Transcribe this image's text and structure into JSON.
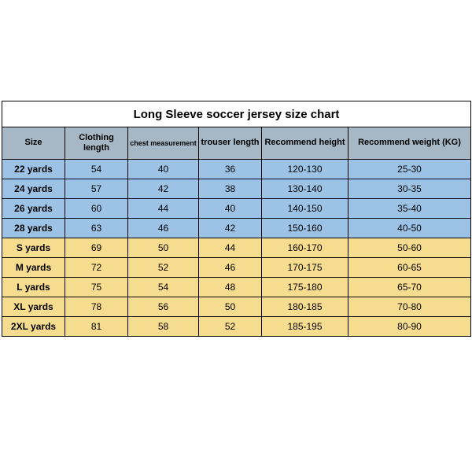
{
  "title": "Long Sleeve soccer jersey size chart",
  "columns": [
    {
      "key": "size",
      "label": "Size",
      "width": 80
    },
    {
      "key": "clothing",
      "label": "Clothing length",
      "width": 80
    },
    {
      "key": "chest",
      "label": "chest measurement",
      "width": 90
    },
    {
      "key": "trouser",
      "label": "trouser length",
      "width": 80
    },
    {
      "key": "height",
      "label": "Recommend height",
      "width": 110
    },
    {
      "key": "weight",
      "label": "Recommend weight (KG)",
      "width": 156
    }
  ],
  "header_bg": "#a6b8c6",
  "group_colors": {
    "youth": "#9cc3e6",
    "adult": "#f6dc8e"
  },
  "border_color": "#000000",
  "rows": [
    {
      "group": "youth",
      "size": "22 yards",
      "clothing": "54",
      "chest": "40",
      "trouser": "36",
      "height": "120-130",
      "weight": "25-30"
    },
    {
      "group": "youth",
      "size": "24 yards",
      "clothing": "57",
      "chest": "42",
      "trouser": "38",
      "height": "130-140",
      "weight": "30-35"
    },
    {
      "group": "youth",
      "size": "26 yards",
      "clothing": "60",
      "chest": "44",
      "trouser": "40",
      "height": "140-150",
      "weight": "35-40"
    },
    {
      "group": "youth",
      "size": "28 yards",
      "clothing": "63",
      "chest": "46",
      "trouser": "42",
      "height": "150-160",
      "weight": "40-50"
    },
    {
      "group": "adult",
      "size": "S yards",
      "clothing": "69",
      "chest": "50",
      "trouser": "44",
      "height": "160-170",
      "weight": "50-60"
    },
    {
      "group": "adult",
      "size": "M yards",
      "clothing": "72",
      "chest": "52",
      "trouser": "46",
      "height": "170-175",
      "weight": "60-65"
    },
    {
      "group": "adult",
      "size": "L yards",
      "clothing": "75",
      "chest": "54",
      "trouser": "48",
      "height": "175-180",
      "weight": "65-70"
    },
    {
      "group": "adult",
      "size": "XL yards",
      "clothing": "78",
      "chest": "56",
      "trouser": "50",
      "height": "180-185",
      "weight": "70-80"
    },
    {
      "group": "adult",
      "size": "2XL yards",
      "clothing": "81",
      "chest": "58",
      "trouser": "52",
      "height": "185-195",
      "weight": "80-90"
    }
  ]
}
